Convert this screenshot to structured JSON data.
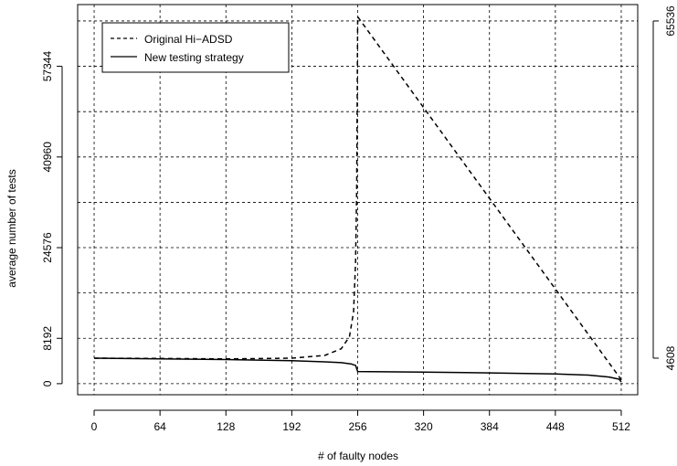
{
  "chart_data": {
    "type": "line",
    "xlabel": "# of faulty nodes",
    "ylabel": "average number of tests",
    "xlim": [
      -16,
      528
    ],
    "ylim": [
      -2000,
      68500
    ],
    "x_ticks": [
      0,
      64,
      128,
      192,
      256,
      320,
      384,
      448,
      512
    ],
    "y_ticks_left": [
      0,
      8192,
      24576,
      40960,
      57344
    ],
    "y_ticks_right": [
      4608,
      65536
    ],
    "grid": true,
    "grid_x": [
      0,
      64,
      128,
      192,
      256,
      320,
      384,
      448,
      512
    ],
    "grid_y": [
      0,
      8192,
      16384,
      24576,
      32768,
      40960,
      49152,
      57344,
      65536
    ],
    "legend_position": "top-left",
    "series": [
      {
        "name": "Original Hi−ADSD",
        "dash": "dashed",
        "color": "#000000",
        "x": [
          0,
          64,
          128,
          192,
          224,
          240,
          248,
          252,
          254,
          255,
          256,
          320,
          384,
          448,
          512
        ],
        "y": [
          4608,
          4550,
          4480,
          4600,
          5100,
          6300,
          8500,
          13000,
          22000,
          35000,
          66300,
          49900,
          33500,
          17100,
          700
        ]
      },
      {
        "name": "New testing strategy",
        "dash": "solid",
        "color": "#000000",
        "x": [
          0,
          64,
          128,
          192,
          224,
          240,
          250,
          254,
          256,
          320,
          384,
          448,
          480,
          500,
          510,
          512
        ],
        "y": [
          4608,
          4480,
          4350,
          4150,
          3950,
          3800,
          3550,
          3300,
          2200,
          2100,
          1950,
          1750,
          1550,
          1200,
          800,
          300
        ]
      }
    ]
  }
}
